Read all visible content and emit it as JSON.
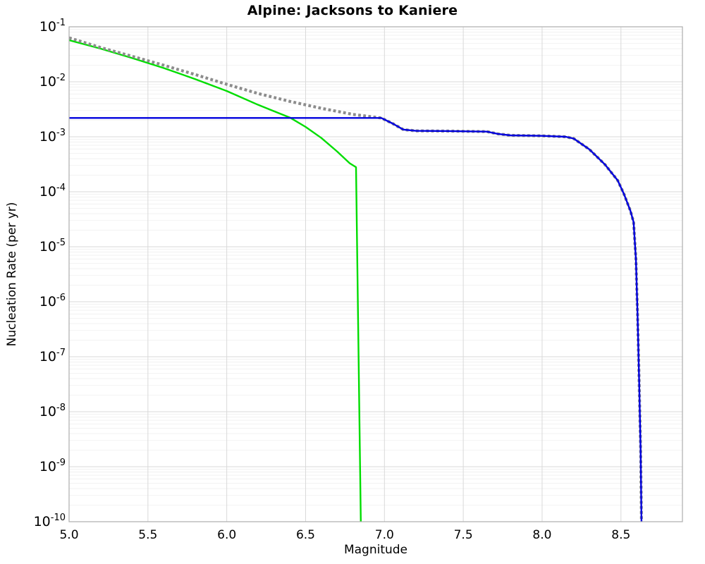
{
  "chart_data": {
    "type": "line",
    "title": "Alpine: Jacksons to Kaniere",
    "xlabel": "Magnitude",
    "ylabel": "Nucleation Rate (per yr)",
    "xlim": [
      5.0,
      8.89
    ],
    "yscale": "log",
    "ylim_exp": [
      -1,
      -10
    ],
    "xticks": [
      5.0,
      5.5,
      6.0,
      6.5,
      7.0,
      7.5,
      8.0,
      8.5
    ],
    "ytick_exponents": [
      -1,
      -2,
      -3,
      -4,
      -5,
      -6,
      -7,
      -8,
      -9,
      -10
    ],
    "grid": {
      "major": true,
      "minor": true,
      "major_color": "#d9d9d9",
      "minor_color": "#efefef"
    },
    "frame_color": "#aeaeae",
    "legend": "none",
    "series": [
      {
        "name": "background-rate-green",
        "color": "#00dd00",
        "style": "solid",
        "width": 2.4,
        "points": [
          [
            5.0,
            0.057
          ],
          [
            5.2,
            0.04
          ],
          [
            5.4,
            0.027
          ],
          [
            5.6,
            0.0178
          ],
          [
            5.8,
            0.0112
          ],
          [
            6.0,
            0.0068
          ],
          [
            6.2,
            0.0038
          ],
          [
            6.4,
            0.00224
          ],
          [
            6.5,
            0.00151
          ],
          [
            6.6,
            0.00095
          ],
          [
            6.7,
            0.00054
          ],
          [
            6.78,
            0.00033
          ],
          [
            6.82,
            0.00028
          ],
          [
            6.85,
            1e-10
          ]
        ]
      },
      {
        "name": "total-rate-dotted-gray",
        "color": "#8c8c8c",
        "style": "dotted",
        "width": 4.2,
        "points": [
          [
            5.0,
            0.063
          ],
          [
            5.2,
            0.042
          ],
          [
            5.4,
            0.029
          ],
          [
            5.6,
            0.02
          ],
          [
            5.8,
            0.0135
          ],
          [
            6.0,
            0.009
          ],
          [
            6.2,
            0.0061
          ],
          [
            6.4,
            0.0044
          ],
          [
            6.6,
            0.0033
          ],
          [
            6.8,
            0.00255
          ],
          [
            6.98,
            0.0022
          ],
          [
            7.05,
            0.00175
          ],
          [
            7.12,
            0.00135
          ],
          [
            7.2,
            0.00128
          ],
          [
            7.4,
            0.00127
          ],
          [
            7.65,
            0.00124
          ],
          [
            7.72,
            0.00113
          ],
          [
            7.8,
            0.00106
          ],
          [
            8.0,
            0.00104
          ],
          [
            8.15,
            0.001
          ],
          [
            8.2,
            0.00093
          ],
          [
            8.3,
            0.00059
          ],
          [
            8.4,
            0.00031
          ],
          [
            8.48,
            0.00016
          ],
          [
            8.52,
            9e-05
          ],
          [
            8.56,
            4.5e-05
          ],
          [
            8.58,
            2.8e-05
          ],
          [
            8.595,
            6e-06
          ],
          [
            8.605,
            6e-07
          ],
          [
            8.615,
            4e-08
          ],
          [
            8.625,
            2e-09
          ],
          [
            8.63,
            1e-10
          ]
        ]
      },
      {
        "name": "characteristic-rate-blue",
        "color": "#0000dd",
        "style": "solid",
        "width": 2.4,
        "points": [
          [
            5.0,
            0.0022
          ],
          [
            6.98,
            0.0022
          ],
          [
            7.05,
            0.00175
          ],
          [
            7.12,
            0.00135
          ],
          [
            7.2,
            0.00128
          ],
          [
            7.4,
            0.00127
          ],
          [
            7.65,
            0.00124
          ],
          [
            7.72,
            0.00113
          ],
          [
            7.8,
            0.00106
          ],
          [
            8.0,
            0.00104
          ],
          [
            8.15,
            0.001
          ],
          [
            8.2,
            0.00093
          ],
          [
            8.3,
            0.00059
          ],
          [
            8.4,
            0.00031
          ],
          [
            8.48,
            0.00016
          ],
          [
            8.52,
            9e-05
          ],
          [
            8.56,
            4.5e-05
          ],
          [
            8.58,
            2.8e-05
          ],
          [
            8.595,
            6e-06
          ],
          [
            8.605,
            6e-07
          ],
          [
            8.615,
            4e-08
          ],
          [
            8.625,
            2e-09
          ],
          [
            8.63,
            1e-10
          ]
        ]
      }
    ]
  }
}
